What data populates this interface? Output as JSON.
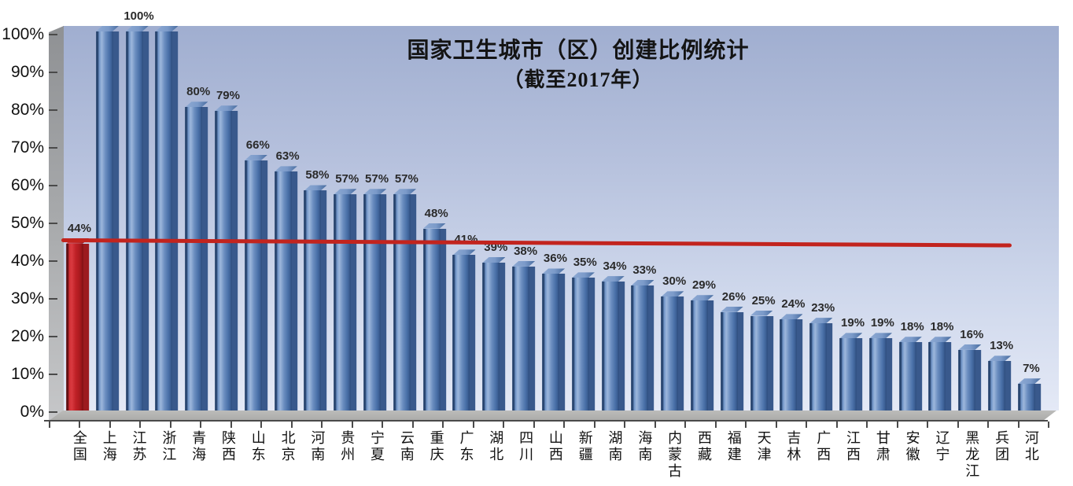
{
  "title": {
    "line1": "国家卫生城市（区）创建比例统计",
    "line2": "（截至2017年）"
  },
  "chart_data": {
    "type": "bar",
    "title": "国家卫生城市（区）创建比例统计",
    "subtitle": "（截至2017年）",
    "categories": [
      "全国",
      "上海",
      "江苏",
      "浙江",
      "青海",
      "陕西",
      "山东",
      "北京",
      "河南",
      "贵州",
      "宁夏",
      "云南",
      "重庆",
      "广东",
      "湖北",
      "四川",
      "山西",
      "新疆",
      "湖南",
      "海南",
      "内蒙古",
      "西藏",
      "福建",
      "天津",
      "吉林",
      "广西",
      "江西",
      "甘肃",
      "安徽",
      "辽宁",
      "黑龙江",
      "兵团",
      "河北"
    ],
    "values": [
      44,
      100,
      100,
      100,
      80,
      79,
      66,
      63,
      58,
      57,
      57,
      57,
      48,
      41,
      39,
      38,
      36,
      35,
      34,
      33,
      30,
      29,
      26,
      25,
      24,
      23,
      19,
      19,
      18,
      18,
      16,
      13,
      7
    ],
    "value_labels": [
      "44%",
      "",
      "100%",
      "",
      "80%",
      "79%",
      "66%",
      "63%",
      "58%",
      "57%",
      "57%",
      "57%",
      "48%",
      "41%",
      "39%",
      "38%",
      "36%",
      "35%",
      "34%",
      "33%",
      "30%",
      "29%",
      "26%",
      "25%",
      "24%",
      "23%",
      "19%",
      "19%",
      "18%",
      "18%",
      "16%",
      "13%",
      "7%"
    ],
    "highlight_index": 0,
    "yticks": [
      "0%",
      "10%",
      "20%",
      "30%",
      "40%",
      "50%",
      "60%",
      "70%",
      "80%",
      "90%",
      "100%"
    ],
    "ylim": [
      0,
      100
    ],
    "grid": false,
    "legend": null,
    "average_line": {
      "value": 45,
      "color": "#c2241e"
    },
    "colors": {
      "bar": "#4a70a8",
      "highlight_bar": "#b51f24",
      "line": "#c2241e",
      "plot_bg_top": "#a0aed0",
      "plot_bg_bottom": "#e4e9f6",
      "wall": "#a8aaac",
      "floor": "#b3b3b1",
      "text": "#111111"
    }
  }
}
